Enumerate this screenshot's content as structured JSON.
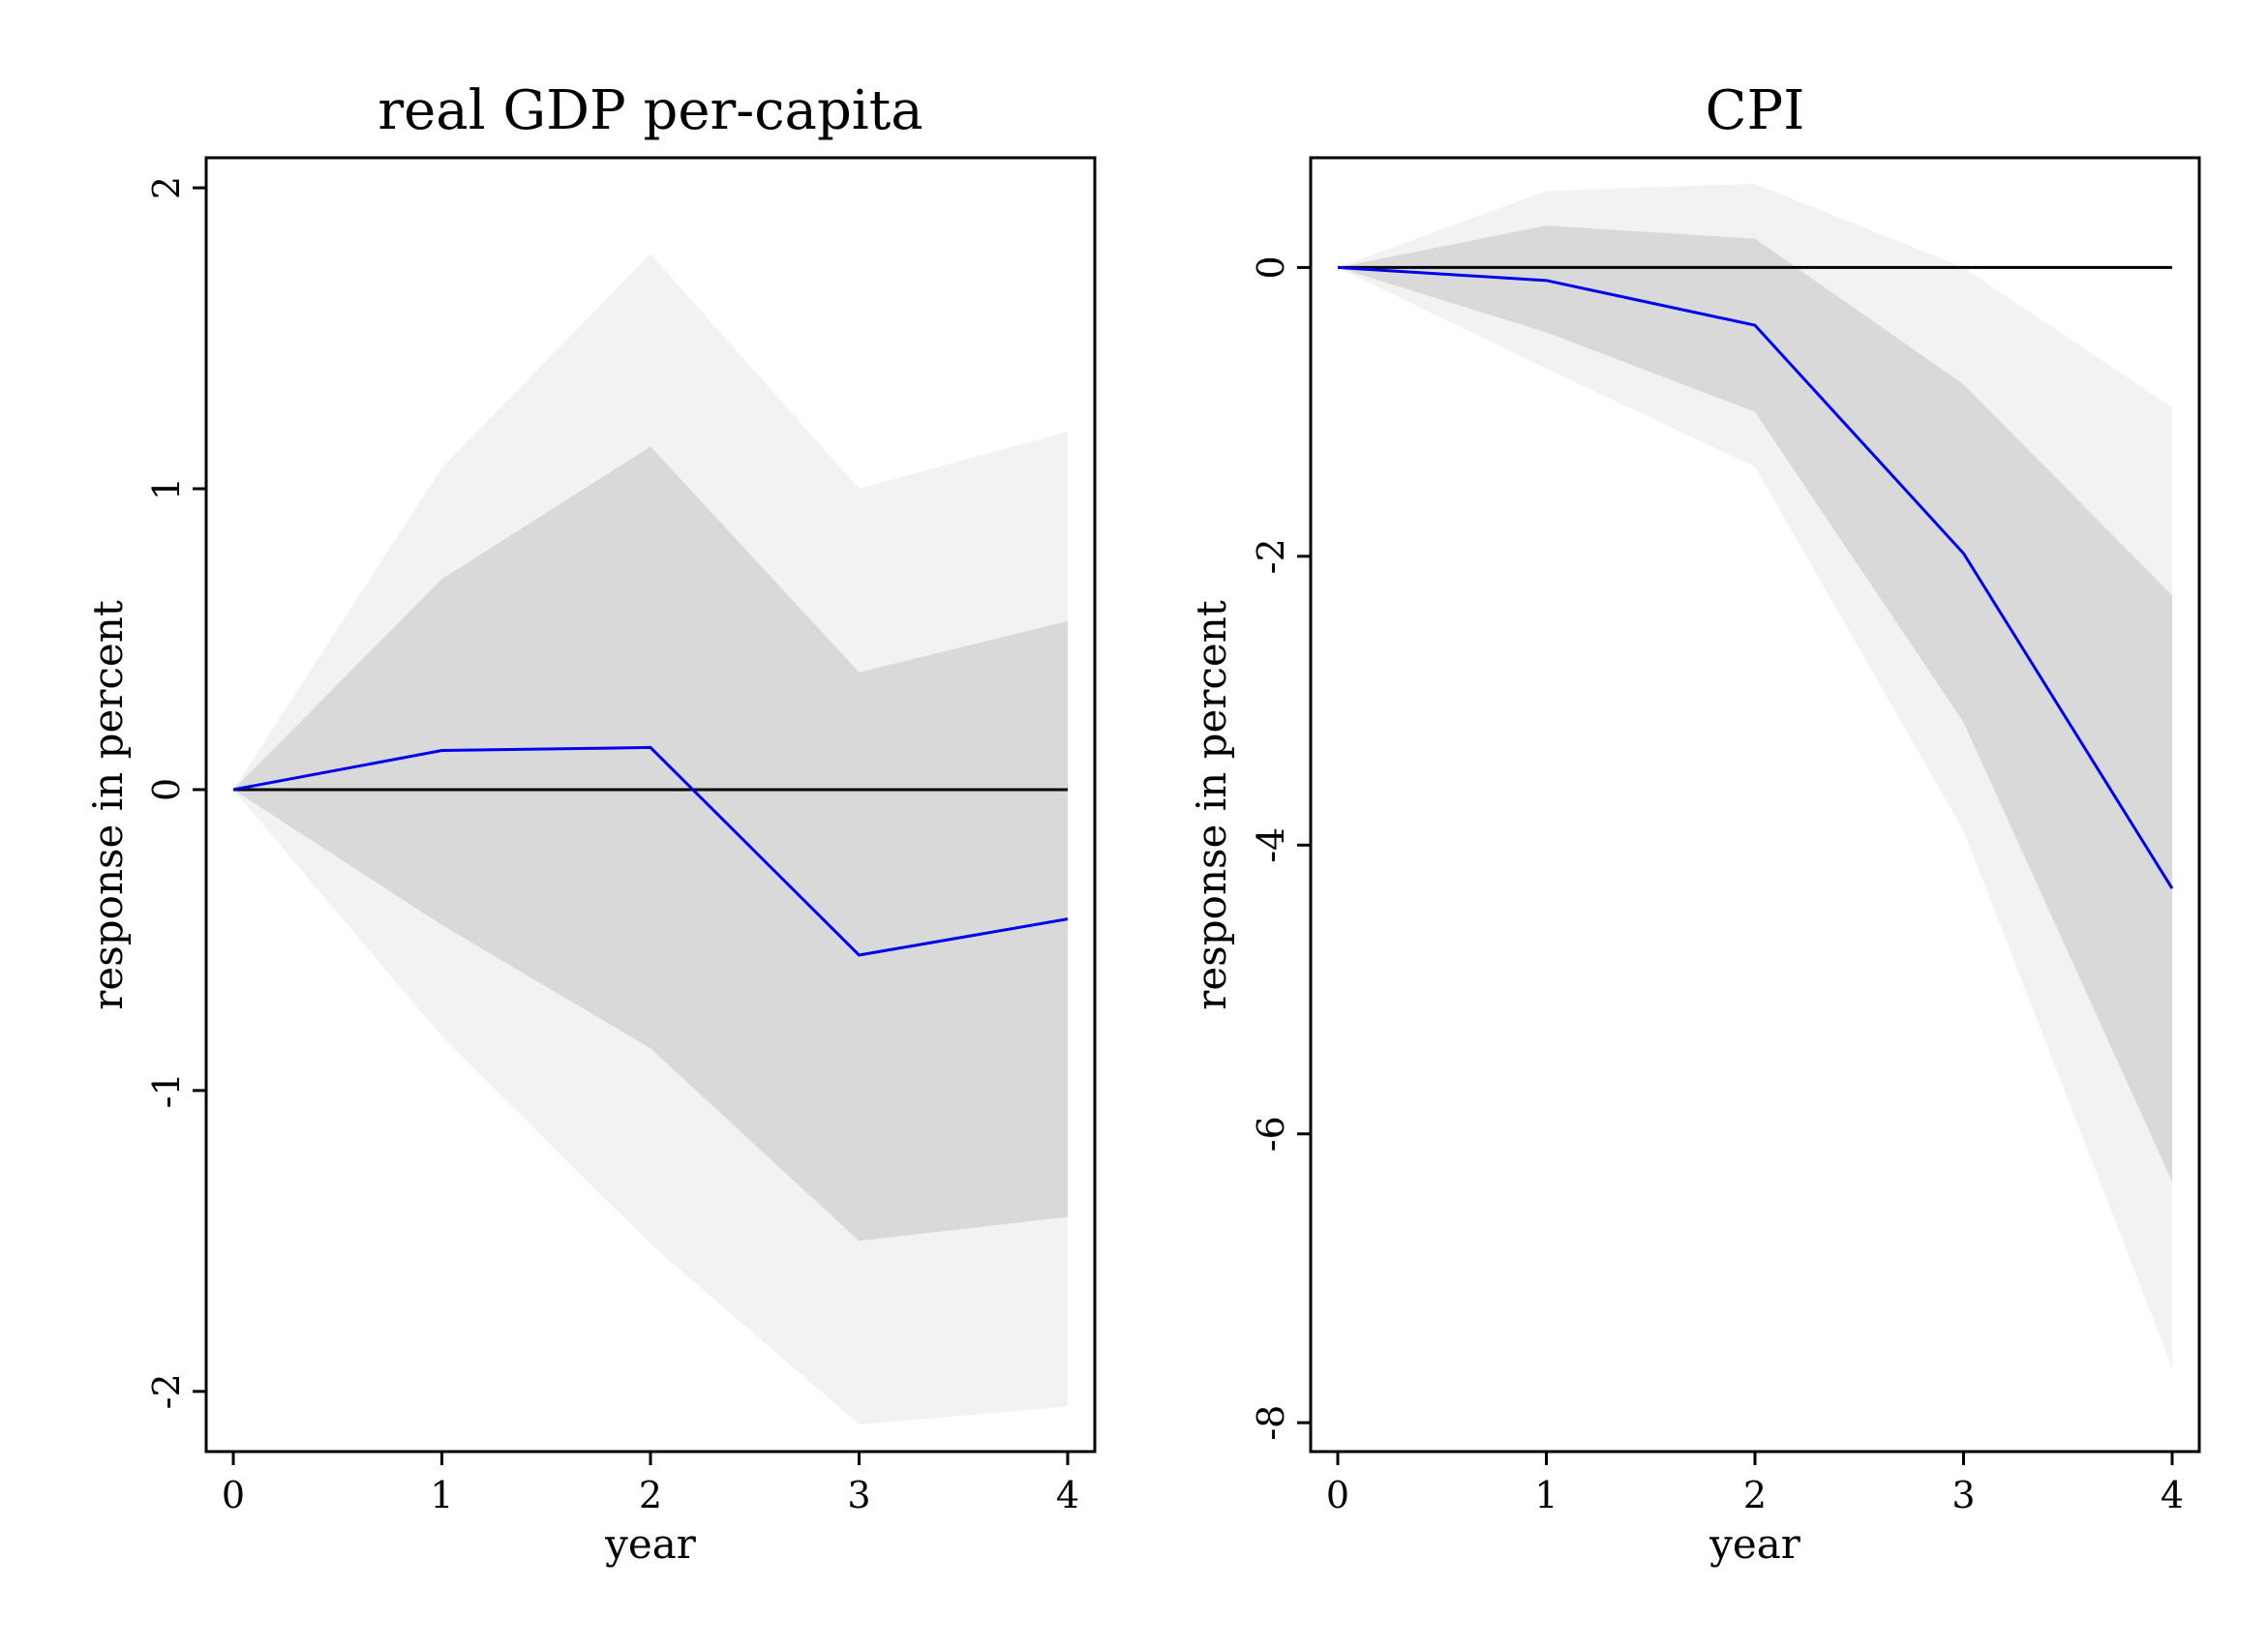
{
  "chart_data": [
    {
      "type": "line",
      "title": "real GDP per-capita",
      "xlabel": "year",
      "ylabel": "response in percent",
      "x": [
        0,
        1,
        2,
        3,
        4
      ],
      "xlim": [
        -0.13,
        4.13
      ],
      "ylim": [
        -2.2,
        2.1
      ],
      "xticks": [
        0,
        1,
        2,
        3,
        4
      ],
      "yticks": [
        -2,
        -1,
        0,
        1,
        2
      ],
      "grid": false,
      "series": [
        {
          "role": "outer-band",
          "color": "#f2f2f2",
          "upper": [
            0,
            1.07,
            1.78,
            1.0,
            1.19
          ],
          "lower": [
            0,
            -0.82,
            -1.51,
            -2.11,
            -2.05
          ]
        },
        {
          "role": "inner-band",
          "color": "#d9d9d9",
          "upper": [
            0,
            0.7,
            1.14,
            0.39,
            0.56
          ],
          "lower": [
            0,
            -0.45,
            -0.86,
            -1.5,
            -1.42
          ]
        },
        {
          "role": "zero-line",
          "color": "#000000",
          "values": [
            0,
            0,
            0,
            0,
            0
          ]
        },
        {
          "role": "response",
          "color": "#0000ee",
          "values": [
            0,
            0.13,
            0.14,
            -0.55,
            -0.43
          ]
        }
      ]
    },
    {
      "type": "line",
      "title": "CPI",
      "xlabel": "year",
      "ylabel": "response in percent",
      "x": [
        0,
        1,
        2,
        3,
        4
      ],
      "xlim": [
        -0.13,
        4.13
      ],
      "ylim": [
        -8.2,
        0.76
      ],
      "xticks": [
        0,
        1,
        2,
        3,
        4
      ],
      "yticks": [
        -8,
        -6,
        -4,
        -2,
        0
      ],
      "grid": false,
      "series": [
        {
          "role": "outer-band",
          "color": "#f2f2f2",
          "upper": [
            0,
            0.53,
            0.58,
            0.0,
            -0.97
          ],
          "lower": [
            0,
            -0.7,
            -1.38,
            -3.9,
            -7.62
          ]
        },
        {
          "role": "inner-band",
          "color": "#d9d9d9",
          "upper": [
            0,
            0.29,
            0.2,
            -0.81,
            -2.27
          ],
          "lower": [
            0,
            -0.45,
            -1.0,
            -3.15,
            -6.33
          ]
        },
        {
          "role": "zero-line",
          "color": "#000000",
          "values": [
            0,
            0,
            0,
            0,
            0
          ]
        },
        {
          "role": "response",
          "color": "#0000ee",
          "values": [
            0,
            -0.09,
            -0.4,
            -1.98,
            -4.3
          ]
        }
      ]
    }
  ]
}
